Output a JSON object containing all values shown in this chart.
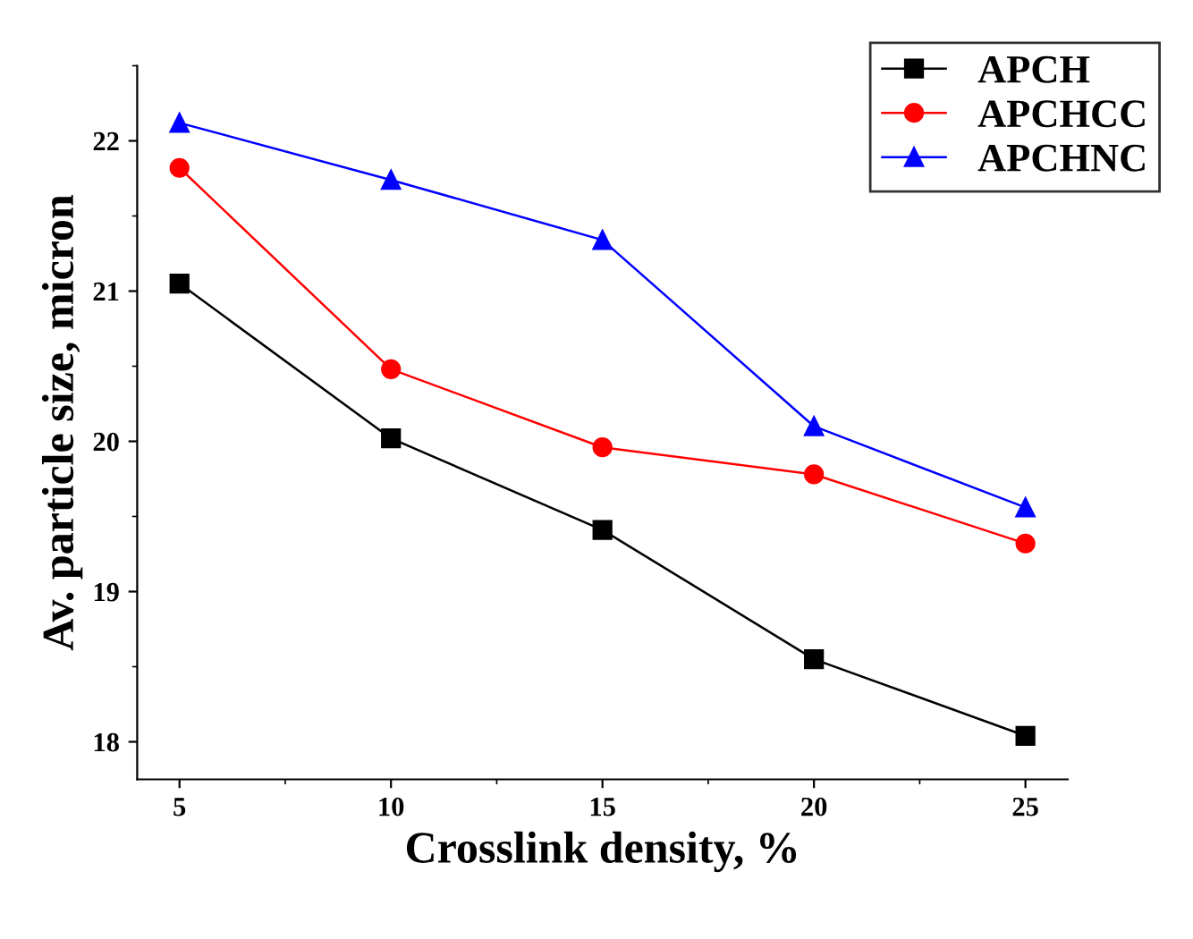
{
  "chart_data": {
    "type": "line",
    "xlabel": "Crosslink density, %",
    "ylabel": "Av. particle size, micron",
    "x": [
      5,
      10,
      15,
      20,
      25
    ],
    "series": [
      {
        "name": "APCH",
        "color": "#000000",
        "marker": "square",
        "values": [
          21.05,
          20.02,
          19.41,
          18.55,
          18.04
        ]
      },
      {
        "name": "APCHCC",
        "color": "#ff0000",
        "marker": "circle",
        "values": [
          21.82,
          20.48,
          19.96,
          19.78,
          19.32
        ]
      },
      {
        "name": "APCHNC",
        "color": "#0000ff",
        "marker": "triangle",
        "values": [
          22.12,
          21.74,
          21.34,
          20.1,
          19.56
        ]
      }
    ],
    "xlim": [
      4,
      26
    ],
    "ylim": [
      17.75,
      22.5
    ],
    "xticks": [
      5,
      10,
      15,
      20,
      25
    ],
    "yticks": [
      18,
      19,
      20,
      21,
      22
    ],
    "grid": false,
    "legend": "top right",
    "line_style": "solid"
  }
}
